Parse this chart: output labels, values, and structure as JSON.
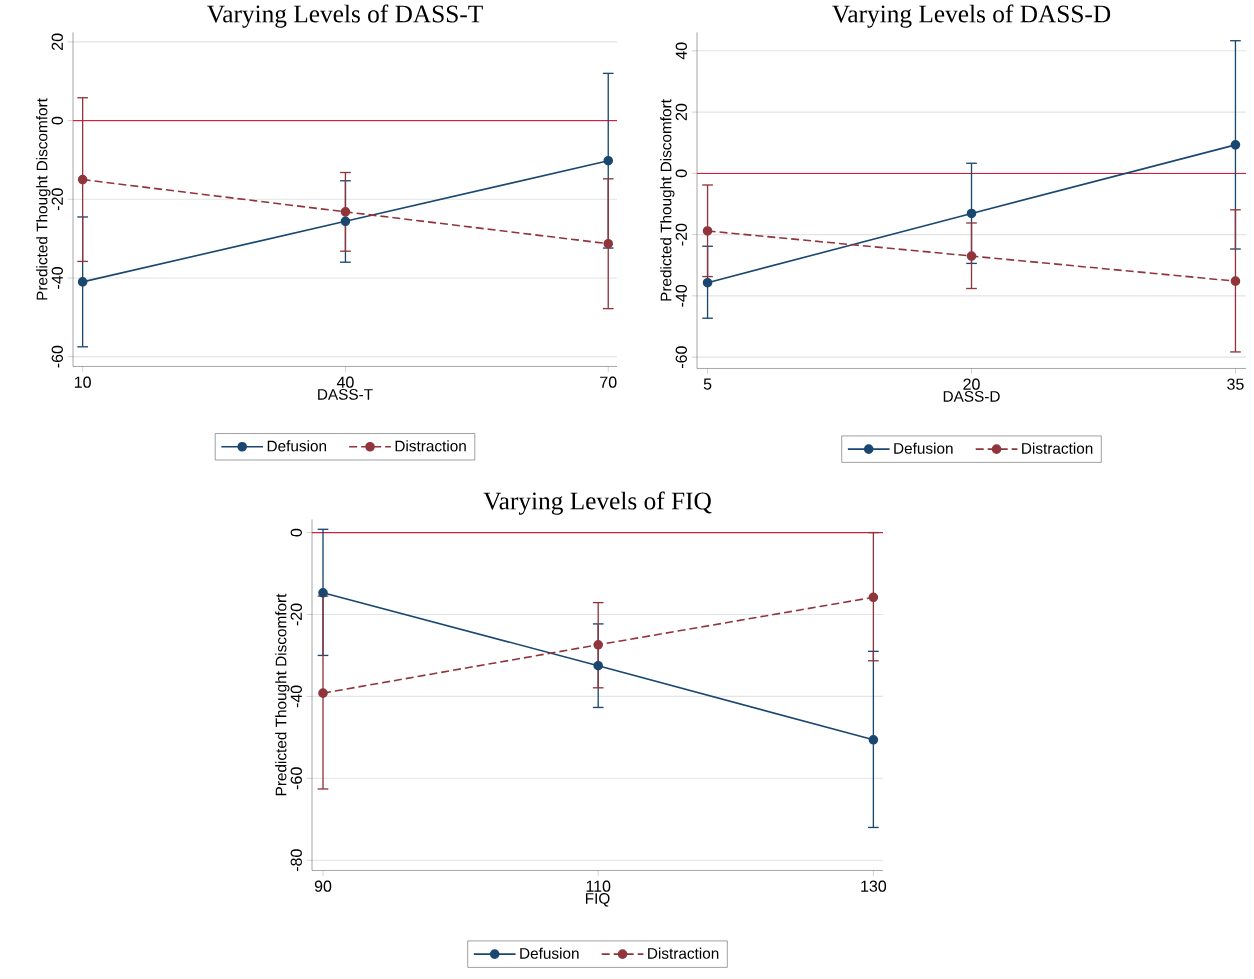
{
  "chart_data": [
    {
      "type": "line",
      "title": "Varying Levels of DASS-T",
      "xlabel": "DASS-T",
      "ylabel": "Predicted Thought Discomfort",
      "x": [
        10,
        40,
        70
      ],
      "xlim": [
        8.9,
        71
      ],
      "xticks": [
        10,
        40,
        70
      ],
      "ylim": [
        -62.5,
        22.4
      ],
      "yticks": [
        -60,
        -40,
        -20,
        0,
        20
      ],
      "grid": "y",
      "legend": "bottom",
      "marker": "circle",
      "ref_lines": [
        {
          "axis": "y",
          "value": 0,
          "color": "#d0213f"
        }
      ],
      "series": [
        {
          "name": "Defusion",
          "color": "#1a476f",
          "line_style": "solid",
          "values": [
            -41,
            -25.6,
            -10.2
          ],
          "errors": [
            [
              -57.5,
              -24.5
            ],
            [
              -36,
              -15.3
            ],
            [
              -32.4,
              12
            ]
          ]
        },
        {
          "name": "Distraction",
          "color": "#90353b",
          "line_style": "dashed",
          "values": [
            -15,
            -23.2,
            -31.3
          ],
          "errors": [
            [
              -35.8,
              5.8
            ],
            [
              -33.2,
              -13.2
            ],
            [
              -47.8,
              -14.8
            ]
          ]
        }
      ]
    },
    {
      "type": "line",
      "title": "Varying Levels of DASS-D",
      "xlabel": "DASS-D",
      "ylabel": "Predicted Thought Discomfort",
      "x": [
        5,
        20,
        35
      ],
      "xlim": [
        4.4,
        35.6
      ],
      "xticks": [
        5,
        20,
        35
      ],
      "ylim": [
        -63.7,
        46
      ],
      "yticks": [
        -60,
        -40,
        -20,
        0,
        20,
        40
      ],
      "grid": "y",
      "legend": "bottom",
      "marker": "circle",
      "ref_lines": [
        {
          "axis": "y",
          "value": 0,
          "color": "#d0213f"
        }
      ],
      "series": [
        {
          "name": "Defusion",
          "color": "#1a476f",
          "line_style": "solid",
          "values": [
            -35.7,
            -13.1,
            9.3
          ],
          "errors": [
            [
              -47.3,
              -23.8
            ],
            [
              -29.4,
              3.3
            ],
            [
              -24.7,
              43.3
            ]
          ]
        },
        {
          "name": "Distraction",
          "color": "#90353b",
          "line_style": "dashed",
          "values": [
            -18.8,
            -27,
            -35.2
          ],
          "errors": [
            [
              -33.7,
              -3.8
            ],
            [
              -37.6,
              -16.2
            ],
            [
              -58.3,
              -11.9
            ]
          ]
        }
      ]
    },
    {
      "type": "line",
      "title": "Varying Levels of FIQ",
      "xlabel": "FIQ",
      "ylabel": "Predicted Thought Discomfort",
      "x": [
        90,
        110,
        130
      ],
      "xlim": [
        89.2,
        130.7
      ],
      "xticks": [
        90,
        110,
        130
      ],
      "ylim": [
        -82.5,
        3.2
      ],
      "yticks": [
        -80,
        -60,
        -40,
        -20,
        0
      ],
      "grid": "y",
      "legend": "bottom",
      "marker": "circle",
      "ref_lines": [
        {
          "axis": "y",
          "value": 0,
          "color": "#d0213f"
        }
      ],
      "series": [
        {
          "name": "Defusion",
          "color": "#1a476f",
          "line_style": "solid",
          "values": [
            -14.7,
            -32.5,
            -50.6
          ],
          "errors": [
            [
              -30,
              0.8
            ],
            [
              -42.7,
              -22.3
            ],
            [
              -72,
              -29
            ]
          ]
        },
        {
          "name": "Distraction",
          "color": "#90353b",
          "line_style": "dashed",
          "values": [
            -39.2,
            -27.4,
            -15.8
          ],
          "errors": [
            [
              -62.6,
              -15.5
            ],
            [
              -37.9,
              -17.1
            ],
            [
              -31.3,
              0
            ]
          ]
        }
      ]
    }
  ]
}
